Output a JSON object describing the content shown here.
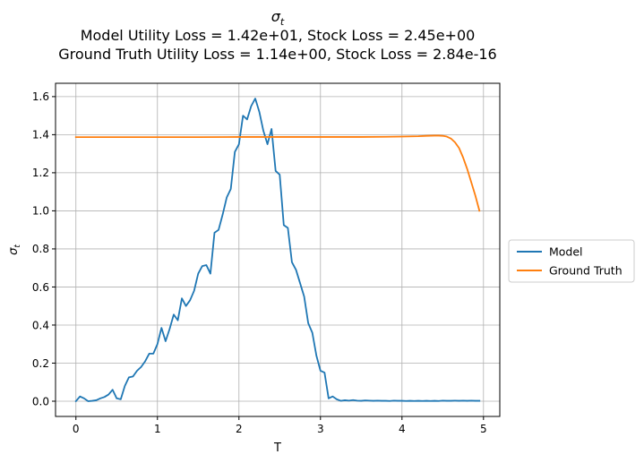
{
  "chart_data": {
    "type": "line",
    "title_symbol": "σ",
    "title_subscript": "t",
    "subtitle_line1": "Model Utility Loss = 1.42e+01, Stock Loss = 2.45e+00",
    "subtitle_line2": "Ground Truth Utility Loss = 1.14e+00, Stock Loss = 2.84e-16",
    "xlabel": "T",
    "ylabel_symbol": "σ",
    "ylabel_subscript": "t",
    "xlim": [
      -0.25,
      5.2
    ],
    "ylim": [
      -0.08,
      1.67
    ],
    "xticks": [
      0,
      1,
      2,
      3,
      4,
      5
    ],
    "xtick_labels": [
      "0",
      "1",
      "2",
      "3",
      "4",
      "5"
    ],
    "yticks": [
      0.0,
      0.2,
      0.4,
      0.6,
      0.8,
      1.0,
      1.2,
      1.4,
      1.6
    ],
    "ytick_labels": [
      "0.0",
      "0.2",
      "0.4",
      "0.6",
      "0.8",
      "1.0",
      "1.2",
      "1.4",
      "1.6"
    ],
    "grid": true,
    "legend_position": "outside-right",
    "series": [
      {
        "name": "Model",
        "color": "#1f77b4",
        "x": [
          0.0,
          0.05,
          0.1,
          0.15,
          0.2,
          0.25,
          0.3,
          0.35,
          0.4,
          0.45,
          0.5,
          0.55,
          0.6,
          0.65,
          0.7,
          0.75,
          0.8,
          0.85,
          0.9,
          0.95,
          1.0,
          1.05,
          1.1,
          1.15,
          1.2,
          1.25,
          1.3,
          1.35,
          1.4,
          1.45,
          1.5,
          1.55,
          1.6,
          1.65,
          1.7,
          1.75,
          1.8,
          1.85,
          1.9,
          1.95,
          2.0,
          2.05,
          2.1,
          2.15,
          2.2,
          2.25,
          2.3,
          2.35,
          2.4,
          2.45,
          2.5,
          2.55,
          2.6,
          2.65,
          2.7,
          2.75,
          2.8,
          2.85,
          2.9,
          2.95,
          3.0,
          3.05,
          3.1,
          3.15,
          3.2,
          3.25,
          3.3,
          3.35,
          3.4,
          3.45,
          3.5,
          3.55,
          3.6,
          3.65,
          3.7,
          3.75,
          3.8,
          3.85,
          3.9,
          3.95,
          4.0,
          4.05,
          4.1,
          4.15,
          4.2,
          4.25,
          4.3,
          4.35,
          4.4,
          4.45,
          4.5,
          4.55,
          4.6,
          4.65,
          4.7,
          4.75,
          4.8,
          4.85,
          4.9,
          4.95
        ],
        "values": [
          0.0,
          0.025,
          0.015,
          0.0,
          0.002,
          0.005,
          0.015,
          0.022,
          0.035,
          0.06,
          0.015,
          0.01,
          0.08,
          0.125,
          0.13,
          0.16,
          0.18,
          0.21,
          0.25,
          0.25,
          0.3,
          0.385,
          0.315,
          0.38,
          0.455,
          0.425,
          0.54,
          0.5,
          0.53,
          0.58,
          0.67,
          0.71,
          0.715,
          0.67,
          0.885,
          0.9,
          0.98,
          1.07,
          1.115,
          1.31,
          1.35,
          1.5,
          1.48,
          1.55,
          1.59,
          1.52,
          1.42,
          1.35,
          1.43,
          1.21,
          1.19,
          0.925,
          0.91,
          0.73,
          0.69,
          0.62,
          0.55,
          0.41,
          0.36,
          0.24,
          0.16,
          0.15,
          0.015,
          0.025,
          0.01,
          0.002,
          0.005,
          0.003,
          0.006,
          0.003,
          0.002,
          0.004,
          0.003,
          0.002,
          0.003,
          0.002,
          0.002,
          0.001,
          0.003,
          0.002,
          0.002,
          0.001,
          0.002,
          0.001,
          0.002,
          0.001,
          0.002,
          0.001,
          0.002,
          0.001,
          0.003,
          0.002,
          0.002,
          0.003,
          0.002,
          0.003,
          0.002,
          0.003,
          0.002,
          0.002
        ]
      },
      {
        "name": "Ground Truth",
        "color": "#ff7f0e",
        "x": [
          0.0,
          0.5,
          1.0,
          1.5,
          2.0,
          2.5,
          3.0,
          3.5,
          3.8,
          4.0,
          4.2,
          4.3,
          4.4,
          4.45,
          4.5,
          4.55,
          4.6,
          4.65,
          4.7,
          4.75,
          4.8,
          4.85,
          4.9,
          4.95
        ],
        "values": [
          1.387,
          1.387,
          1.387,
          1.387,
          1.388,
          1.388,
          1.388,
          1.388,
          1.389,
          1.39,
          1.392,
          1.394,
          1.395,
          1.395,
          1.394,
          1.39,
          1.38,
          1.36,
          1.33,
          1.28,
          1.22,
          1.15,
          1.08,
          1.0
        ]
      }
    ]
  }
}
